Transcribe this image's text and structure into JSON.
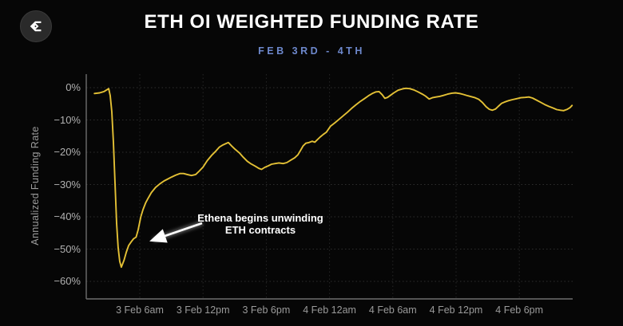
{
  "header": {
    "title": "ETH OI WEIGHTED FUNDING RATE",
    "subtitle": "FEB 3RD - 4TH"
  },
  "logo": {
    "icon": "sigma-diamond-logo"
  },
  "annotation": {
    "line1": "Ethena begins unwinding",
    "line2": "ETH contracts"
  },
  "axis": {
    "y_title": "Annualized Funding Rate"
  },
  "colors": {
    "background": "#060606",
    "line": "#e3c035",
    "subtitle_accent": "#6d88cc",
    "grid": "#2e2e2e",
    "axis_spine": "#6e6e6e",
    "tick_text": "#a6a6a6",
    "annotation_text": "#ffffff"
  },
  "chart_data": {
    "type": "line",
    "title": "ETH OI WEIGHTED FUNDING RATE",
    "subtitle": "FEB 3RD - 4TH",
    "ylabel": "Annualized Funding Rate",
    "xlabel": "",
    "x_unit": "hours since 3 Feb 00:00",
    "xlim": [
      0.9,
      47.3
    ],
    "ylim": [
      -65,
      4
    ],
    "grid": true,
    "legend": false,
    "y_ticks": [
      {
        "v": 0,
        "label": "0%"
      },
      {
        "v": -10,
        "label": "−10%"
      },
      {
        "v": -20,
        "label": "−20%"
      },
      {
        "v": -30,
        "label": "−30%"
      },
      {
        "v": -40,
        "label": "−40%"
      },
      {
        "v": -50,
        "label": "−50%"
      },
      {
        "v": -60,
        "label": "−60%"
      }
    ],
    "x_ticks": [
      {
        "t": 6,
        "label": "3 Feb 6am"
      },
      {
        "t": 12,
        "label": "3 Feb 12pm"
      },
      {
        "t": 18,
        "label": "3 Feb 6pm"
      },
      {
        "t": 24,
        "label": "4 Feb 12am"
      },
      {
        "t": 30,
        "label": "4 Feb 6am"
      },
      {
        "t": 36,
        "label": "4 Feb 12pm"
      },
      {
        "t": 42,
        "label": "4 Feb 6pm"
      }
    ],
    "annotations": [
      {
        "text": "Ethena begins unwinding ETH contracts",
        "points_to": "recovery leg after the −55.6% trough near 3 Feb ~5am"
      }
    ],
    "series": [
      {
        "name": "ETH OI weighted funding rate (annualized %)",
        "color": "#e3c035",
        "points": [
          [
            1.7,
            -1.8
          ],
          [
            2.2,
            -1.6
          ],
          [
            2.6,
            -1.2
          ],
          [
            2.9,
            -0.6
          ],
          [
            3.05,
            -0.3
          ],
          [
            3.2,
            -2.5
          ],
          [
            3.35,
            -7.5
          ],
          [
            3.5,
            -17
          ],
          [
            3.65,
            -29.5
          ],
          [
            3.8,
            -42
          ],
          [
            3.95,
            -49.5
          ],
          [
            4.1,
            -53.8
          ],
          [
            4.25,
            -55.6
          ],
          [
            4.5,
            -53.5
          ],
          [
            4.72,
            -51
          ],
          [
            4.95,
            -48.9
          ],
          [
            5.2,
            -47.7
          ],
          [
            5.42,
            -46.8
          ],
          [
            5.65,
            -46.3
          ],
          [
            5.85,
            -44
          ],
          [
            6.1,
            -40
          ],
          [
            6.3,
            -37.8
          ],
          [
            6.55,
            -35.7
          ],
          [
            6.75,
            -34.5
          ],
          [
            7.1,
            -32.5
          ],
          [
            7.5,
            -30.9
          ],
          [
            7.9,
            -29.8
          ],
          [
            8.3,
            -28.9
          ],
          [
            8.65,
            -28.3
          ],
          [
            9.0,
            -27.7
          ],
          [
            9.4,
            -27.1
          ],
          [
            9.8,
            -26.6
          ],
          [
            10.15,
            -26.6
          ],
          [
            10.5,
            -26.9
          ],
          [
            10.9,
            -27.2
          ],
          [
            11.3,
            -26.9
          ],
          [
            11.65,
            -25.8
          ],
          [
            12.0,
            -24.6
          ],
          [
            12.4,
            -22.6
          ],
          [
            12.8,
            -21.0
          ],
          [
            13.2,
            -19.7
          ],
          [
            13.55,
            -18.4
          ],
          [
            13.9,
            -17.7
          ],
          [
            14.4,
            -17.0
          ],
          [
            14.7,
            -18.0
          ],
          [
            15.05,
            -19.1
          ],
          [
            15.45,
            -20.2
          ],
          [
            15.8,
            -21.5
          ],
          [
            16.2,
            -22.8
          ],
          [
            16.55,
            -23.6
          ],
          [
            16.95,
            -24.3
          ],
          [
            17.3,
            -25.0
          ],
          [
            17.55,
            -25.3
          ],
          [
            17.85,
            -24.7
          ],
          [
            18.2,
            -24.2
          ],
          [
            18.5,
            -23.7
          ],
          [
            18.85,
            -23.5
          ],
          [
            19.2,
            -23.3
          ],
          [
            19.6,
            -23.5
          ],
          [
            19.95,
            -23.2
          ],
          [
            20.35,
            -22.4
          ],
          [
            20.7,
            -21.7
          ],
          [
            21.0,
            -20.8
          ],
          [
            21.25,
            -19.4
          ],
          [
            21.5,
            -18.0
          ],
          [
            21.75,
            -17.2
          ],
          [
            22.05,
            -17.0
          ],
          [
            22.35,
            -16.6
          ],
          [
            22.6,
            -16.9
          ],
          [
            22.85,
            -16.1
          ],
          [
            23.1,
            -15.3
          ],
          [
            23.4,
            -14.5
          ],
          [
            23.7,
            -13.8
          ],
          [
            24.1,
            -11.9
          ],
          [
            24.5,
            -10.9
          ],
          [
            24.9,
            -9.8
          ],
          [
            25.3,
            -8.7
          ],
          [
            25.7,
            -7.6
          ],
          [
            26.1,
            -6.4
          ],
          [
            26.5,
            -5.3
          ],
          [
            26.9,
            -4.3
          ],
          [
            27.3,
            -3.4
          ],
          [
            27.7,
            -2.5
          ],
          [
            28.05,
            -1.8
          ],
          [
            28.4,
            -1.3
          ],
          [
            28.7,
            -1.2
          ],
          [
            29.0,
            -2.2
          ],
          [
            29.25,
            -3.3
          ],
          [
            29.5,
            -3.0
          ],
          [
            29.8,
            -2.3
          ],
          [
            30.1,
            -1.6
          ],
          [
            30.5,
            -0.8
          ],
          [
            30.9,
            -0.4
          ],
          [
            31.2,
            -0.2
          ],
          [
            31.6,
            -0.3
          ],
          [
            32.0,
            -0.7
          ],
          [
            32.4,
            -1.3
          ],
          [
            32.8,
            -2.0
          ],
          [
            33.1,
            -2.6
          ],
          [
            33.45,
            -3.5
          ],
          [
            33.75,
            -3.1
          ],
          [
            34.1,
            -2.9
          ],
          [
            34.45,
            -2.7
          ],
          [
            34.8,
            -2.4
          ],
          [
            35.2,
            -2.0
          ],
          [
            35.6,
            -1.7
          ],
          [
            35.95,
            -1.6
          ],
          [
            36.35,
            -1.8
          ],
          [
            36.7,
            -2.1
          ],
          [
            37.1,
            -2.5
          ],
          [
            37.45,
            -2.8
          ],
          [
            37.8,
            -3.1
          ],
          [
            38.15,
            -3.6
          ],
          [
            38.5,
            -4.6
          ],
          [
            38.85,
            -5.9
          ],
          [
            39.15,
            -6.7
          ],
          [
            39.45,
            -7.0
          ],
          [
            39.75,
            -6.6
          ],
          [
            40.0,
            -5.8
          ],
          [
            40.3,
            -4.9
          ],
          [
            40.65,
            -4.4
          ],
          [
            41.0,
            -4.0
          ],
          [
            41.35,
            -3.7
          ],
          [
            41.75,
            -3.4
          ],
          [
            42.15,
            -3.1
          ],
          [
            42.55,
            -3.0
          ],
          [
            42.9,
            -2.9
          ],
          [
            43.25,
            -3.2
          ],
          [
            43.6,
            -3.8
          ],
          [
            44.0,
            -4.5
          ],
          [
            44.4,
            -5.2
          ],
          [
            44.8,
            -5.8
          ],
          [
            45.2,
            -6.3
          ],
          [
            45.55,
            -6.8
          ],
          [
            45.9,
            -7.0
          ],
          [
            46.2,
            -7.1
          ],
          [
            46.55,
            -6.7
          ],
          [
            46.8,
            -6.2
          ],
          [
            47.0,
            -5.5
          ]
        ]
      }
    ]
  }
}
